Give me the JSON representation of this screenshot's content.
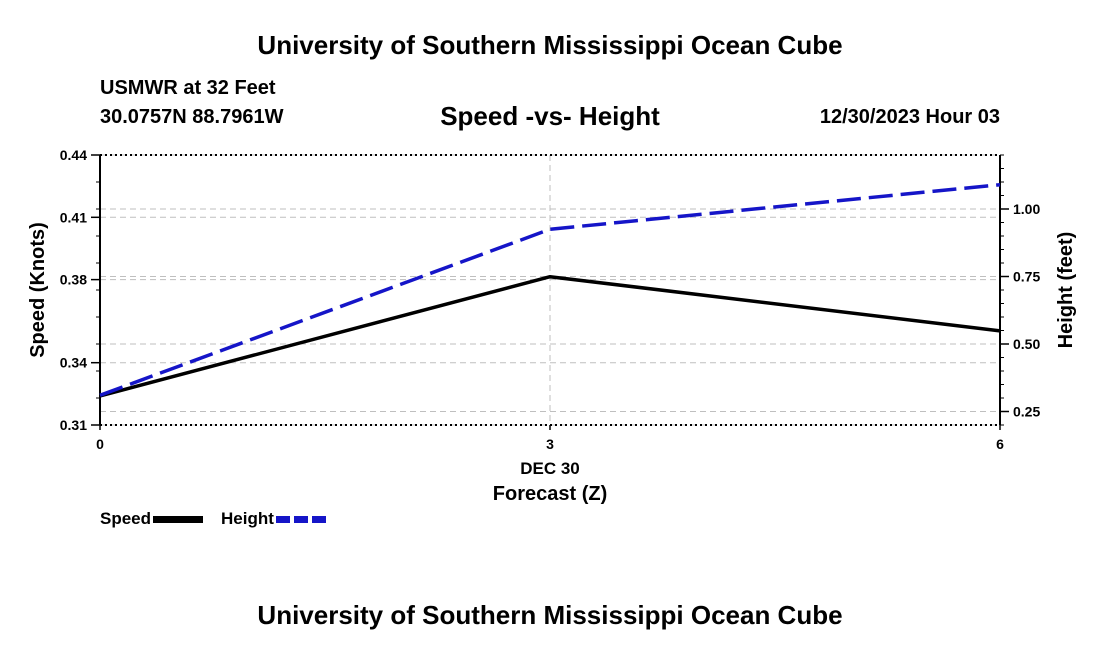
{
  "header": {
    "title_top": "University of Southern Mississippi Ocean Cube",
    "station": "USMWR at 32 Feet",
    "coords": "30.0757N  88.7961W",
    "subtitle": "Speed -vs- Height",
    "datetime": "12/30/2023 Hour 03"
  },
  "footer": {
    "title_bottom": "University of Southern Mississippi Ocean Cube"
  },
  "legend": {
    "speed_label": "Speed",
    "height_label": "Height"
  },
  "colors": {
    "speed": "#000000",
    "height": "#1515c8",
    "grid": "#bfbfbf"
  },
  "chart_data": {
    "type": "line",
    "title": "Speed -vs- Height",
    "xlabel": "Forecast (Z)",
    "xdate": "DEC 30",
    "x": [
      0,
      3,
      6
    ],
    "xticks": [
      "0",
      "3",
      "6"
    ],
    "xlim": [
      0,
      6
    ],
    "ylabel_left": "Speed (Knots)",
    "ylim_left": [
      0.31,
      0.44
    ],
    "yticks_left": [
      0.31,
      0.34,
      0.38,
      0.41,
      0.44
    ],
    "yticklabels_left": [
      "0.31",
      "0.34",
      "0.38",
      "0.41",
      "0.44"
    ],
    "ylabel_right": "Height (feet)",
    "ylim_right": [
      0.2,
      1.2
    ],
    "yticks_right": [
      0.25,
      0.5,
      0.75,
      1.0
    ],
    "yticklabels_right": [
      "0.25",
      "0.50",
      "0.75",
      "1.00"
    ],
    "grid": true,
    "series": [
      {
        "name": "Speed",
        "axis": "left",
        "style": "solid",
        "values": [
          0.324,
          0.3814,
          0.3553
        ]
      },
      {
        "name": "Height",
        "axis": "right",
        "style": "dashed",
        "values": [
          0.31,
          0.925,
          1.09
        ]
      }
    ]
  }
}
